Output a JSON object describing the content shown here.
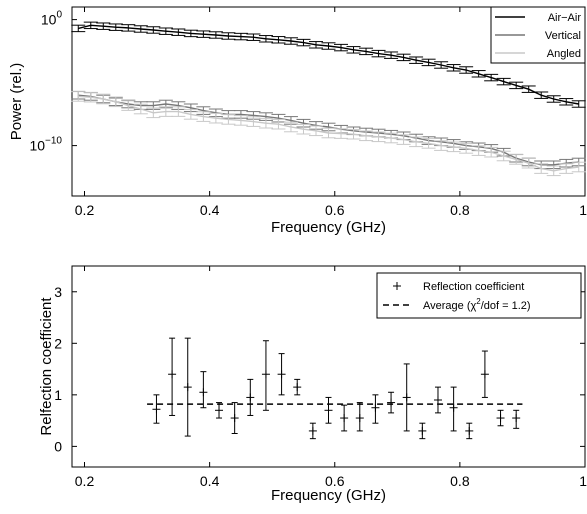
{
  "chart_data": [
    {
      "type": "line",
      "title": "",
      "xlabel": "Frequency (GHz)",
      "ylabel": "Power (rel.)",
      "xlim": [
        0.18,
        1.0
      ],
      "ylim": [
        1e-14,
        10
      ],
      "yscale": "log",
      "xticks": [
        0.2,
        0.4,
        0.6,
        0.8,
        1.0
      ],
      "xtick_labels": [
        "0.2",
        "0.4",
        "0.6",
        "0.8",
        "1"
      ],
      "yticks": [
        1,
        1e-10
      ],
      "ytick_labels": [
        {
          "base": "10",
          "exp": "0"
        },
        {
          "base": "10",
          "exp": "−10"
        }
      ],
      "grid": false,
      "legend_position": "top-right",
      "series": [
        {
          "name": "Air−Air",
          "color": "#000000",
          "x": [
            0.19,
            0.21,
            0.23,
            0.25,
            0.27,
            0.29,
            0.31,
            0.33,
            0.35,
            0.37,
            0.39,
            0.41,
            0.43,
            0.45,
            0.47,
            0.49,
            0.51,
            0.53,
            0.55,
            0.57,
            0.59,
            0.61,
            0.63,
            0.65,
            0.67,
            0.69,
            0.71,
            0.73,
            0.75,
            0.77,
            0.79,
            0.81,
            0.83,
            0.85,
            0.87,
            0.89,
            0.91,
            0.93,
            0.95,
            0.97,
            0.99
          ],
          "y": [
            0.2,
            0.35,
            0.3,
            0.25,
            0.22,
            0.18,
            0.15,
            0.12,
            0.1,
            0.08,
            0.07,
            0.06,
            0.05,
            0.045,
            0.04,
            0.03,
            0.025,
            0.02,
            0.015,
            0.01,
            0.008,
            0.006,
            0.004,
            0.003,
            0.002,
            0.0015,
            0.001,
            0.0006,
            0.0004,
            0.00025,
            0.00015,
            0.0001,
            5e-05,
            2.5e-05,
            1.2e-05,
            6e-06,
            3e-06,
            1e-06,
            5e-07,
            3e-07,
            2e-07
          ]
        },
        {
          "name": "Vertical",
          "color": "#777777",
          "x": [
            0.19,
            0.21,
            0.23,
            0.25,
            0.27,
            0.29,
            0.31,
            0.33,
            0.35,
            0.37,
            0.39,
            0.41,
            0.43,
            0.45,
            0.47,
            0.49,
            0.51,
            0.53,
            0.55,
            0.57,
            0.59,
            0.61,
            0.63,
            0.65,
            0.67,
            0.69,
            0.71,
            0.73,
            0.75,
            0.77,
            0.79,
            0.81,
            0.83,
            0.85,
            0.87,
            0.89,
            0.91,
            0.93,
            0.95,
            0.97,
            0.99
          ],
          "y": [
            1e-06,
            8e-07,
            5e-07,
            3e-07,
            2e-07,
            1.5e-07,
            1.5e-07,
            2e-07,
            1.5e-07,
            1e-07,
            6e-08,
            4e-08,
            3e-08,
            3e-08,
            2.5e-08,
            2e-08,
            1.5e-08,
            1e-08,
            6e-09,
            4e-09,
            3e-09,
            2e-09,
            1.5e-09,
            1.2e-09,
            1e-09,
            8e-10,
            6e-10,
            4e-10,
            2.5e-10,
            2e-10,
            1.5e-10,
            1e-10,
            8e-11,
            6e-11,
            3e-11,
            1e-11,
            5e-12,
            3e-12,
            3e-12,
            4e-12,
            5e-12
          ]
        },
        {
          "name": "Angled",
          "color": "#c8c8c8",
          "x": [
            0.19,
            0.21,
            0.23,
            0.25,
            0.27,
            0.29,
            0.31,
            0.33,
            0.35,
            0.37,
            0.39,
            0.41,
            0.43,
            0.45,
            0.47,
            0.49,
            0.51,
            0.53,
            0.55,
            0.57,
            0.59,
            0.61,
            0.63,
            0.65,
            0.67,
            0.69,
            0.71,
            0.73,
            0.75,
            0.77,
            0.79,
            0.81,
            0.83,
            0.85,
            0.87,
            0.89,
            0.91,
            0.93,
            0.95,
            0.97,
            0.99
          ],
          "y": [
            8e-07,
            7e-07,
            5e-07,
            3e-07,
            1.5e-07,
            8e-08,
            4e-08,
            5e-08,
            5e-08,
            3e-08,
            2e-08,
            1.5e-08,
            1.2e-08,
            1e-08,
            8e-09,
            6e-09,
            5e-09,
            3e-09,
            2e-09,
            1.5e-09,
            1e-09,
            9e-10,
            8e-10,
            6e-10,
            5e-10,
            4e-10,
            3e-10,
            2e-10,
            1.5e-10,
            1e-10,
            8e-11,
            6e-11,
            4e-11,
            3e-11,
            1.5e-11,
            8e-12,
            4e-12,
            1.5e-12,
            1e-12,
            1.5e-12,
            2e-12
          ]
        }
      ]
    },
    {
      "type": "scatter",
      "title": "",
      "xlabel": "Frequency (GHz)",
      "ylabel": "Relfection coefficient",
      "xlim": [
        0.18,
        1.0
      ],
      "ylim": [
        -0.4,
        3.5
      ],
      "xticks": [
        0.2,
        0.4,
        0.6,
        0.8,
        1.0
      ],
      "xtick_labels": [
        "0.2",
        "0.4",
        "0.6",
        "0.8",
        "1"
      ],
      "yticks": [
        0,
        1,
        2,
        3
      ],
      "ytick_labels": [
        "0",
        "1",
        "2",
        "3"
      ],
      "grid": false,
      "legend_position": "top-right",
      "series": [
        {
          "name": "Reflection coefficient",
          "color": "#000000",
          "marker": "+",
          "x": [
            0.315,
            0.34,
            0.365,
            0.39,
            0.415,
            0.44,
            0.465,
            0.49,
            0.515,
            0.54,
            0.565,
            0.59,
            0.615,
            0.64,
            0.665,
            0.69,
            0.715,
            0.74,
            0.765,
            0.79,
            0.815,
            0.84,
            0.865,
            0.89
          ],
          "y": [
            0.72,
            1.4,
            1.15,
            1.05,
            0.7,
            0.55,
            0.95,
            1.4,
            1.4,
            1.15,
            0.3,
            0.7,
            0.55,
            0.55,
            0.75,
            0.85,
            0.95,
            0.3,
            0.9,
            0.75,
            0.3,
            1.4,
            0.55,
            0.55
          ],
          "err_low": [
            0.45,
            0.6,
            0.2,
            0.75,
            0.55,
            0.25,
            0.6,
            0.7,
            1.0,
            1.0,
            0.15,
            0.45,
            0.3,
            0.3,
            0.45,
            0.65,
            0.3,
            0.15,
            0.65,
            0.3,
            0.15,
            0.95,
            0.4,
            0.35
          ],
          "err_high": [
            1.0,
            2.1,
            2.1,
            1.45,
            0.85,
            0.85,
            1.3,
            2.05,
            1.8,
            1.3,
            0.45,
            0.95,
            0.8,
            0.85,
            1.0,
            1.05,
            1.6,
            0.45,
            1.15,
            1.15,
            0.45,
            1.85,
            0.7,
            0.7
          ]
        },
        {
          "name": "Average (χ²/dof = 1.2)",
          "legend_prefix": "Average (",
          "legend_chi": "χ",
          "legend_sup": "2",
          "legend_suffix": "/dof = 1.2)",
          "color": "#000000",
          "linestyle": "dashed",
          "x": [
            0.3,
            0.9
          ],
          "y": [
            0.82,
            0.82
          ]
        }
      ]
    }
  ]
}
